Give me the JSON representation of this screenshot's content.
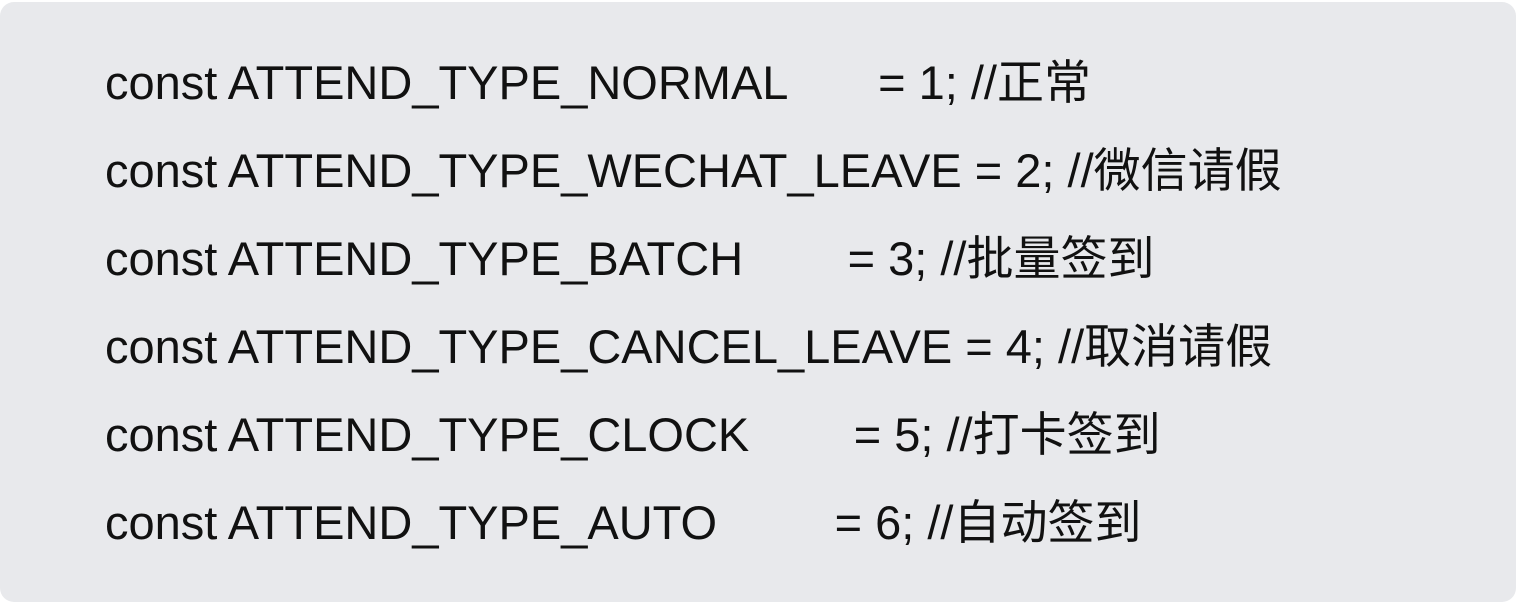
{
  "code_block": {
    "lines": [
      {
        "text": "const ATTEND_TYPE_NORMAL       = 1; //正常"
      },
      {
        "text": "const ATTEND_TYPE_WECHAT_LEAVE = 2; //微信请假"
      },
      {
        "text": "const ATTEND_TYPE_BATCH        = 3; //批量签到"
      },
      {
        "text": "const ATTEND_TYPE_CANCEL_LEAVE = 4; //取消请假"
      },
      {
        "text": "const ATTEND_TYPE_CLOCK        = 5; //打卡签到"
      },
      {
        "text": "const ATTEND_TYPE_AUTO         = 6; //自动签到"
      }
    ]
  }
}
